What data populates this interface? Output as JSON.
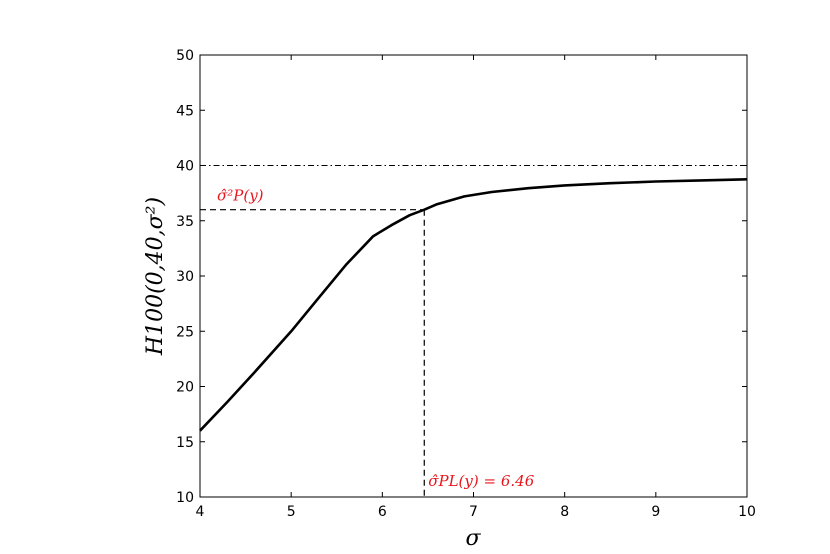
{
  "chart_data": {
    "type": "line",
    "xlabel": "σ",
    "ylabel": "H100(0,40,σ²)",
    "xlim": [
      4,
      10
    ],
    "ylim": [
      10,
      50
    ],
    "xticks": [
      "4",
      "5",
      "6",
      "7",
      "8",
      "9",
      "10"
    ],
    "yticks": [
      "10",
      "15",
      "20",
      "25",
      "30",
      "35",
      "40",
      "45",
      "50"
    ],
    "grid": false,
    "series": [
      {
        "x": [
          4.0,
          4.3,
          4.6,
          5.0,
          5.3,
          5.6,
          5.9,
          6.1,
          6.3,
          6.46,
          6.6,
          6.9,
          7.2,
          7.6,
          8.0,
          8.5,
          9.0,
          9.5,
          10.0
        ],
        "y": [
          16.0,
          18.6,
          21.3,
          25.0,
          28.0,
          31.0,
          33.6,
          34.6,
          35.5,
          36.0,
          36.5,
          37.2,
          37.6,
          37.95,
          38.2,
          38.4,
          38.55,
          38.65,
          38.75
        ],
        "color": "#000000"
      }
    ],
    "reference_lines": {
      "asymptote_y": 40,
      "estimate_x": 6.46,
      "estimate_y": 36.0
    },
    "annotations": {
      "y_estimate_label": "σ̂²P(y)",
      "x_estimate_label": "σ̂PL(y) = 6.46"
    },
    "colors": {
      "curve": "#000000",
      "annotation": "#e8141b"
    }
  }
}
